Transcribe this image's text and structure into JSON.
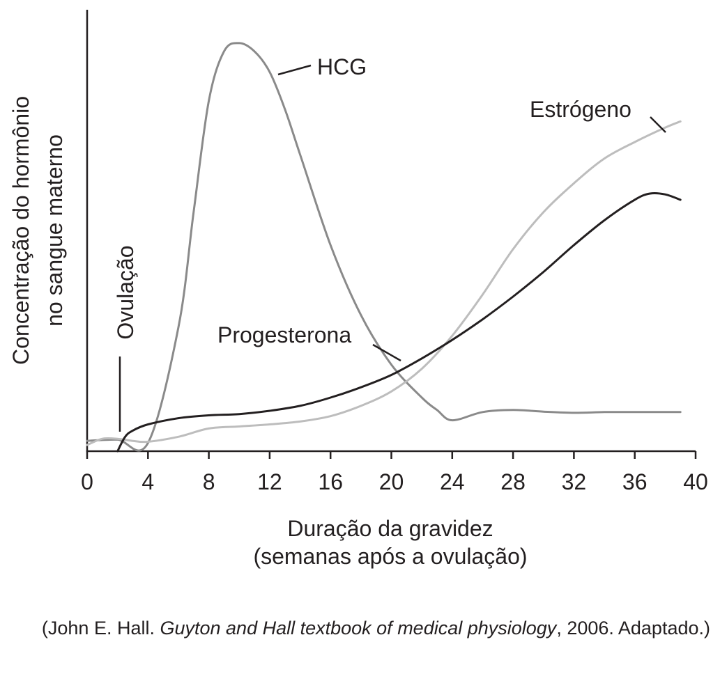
{
  "chart_data": {
    "type": "line",
    "ylabel_lines": [
      "Concentração do hormônio",
      "no sangue materno"
    ],
    "xlabel_lines": [
      "Duração da gravidez",
      "(semanas após a ovulação)"
    ],
    "xlim": [
      0,
      40
    ],
    "x_ticks": [
      0,
      4,
      8,
      12,
      16,
      20,
      24,
      28,
      32,
      36,
      40
    ],
    "ylim": [
      0,
      100
    ],
    "y_unit": "relative concentration (0–100, no scale shown)",
    "grid": false,
    "legend": "none (labels on curves)",
    "annotation": {
      "text": "Ovulação",
      "x": 2
    },
    "series": [
      {
        "name": "HCG",
        "color": "#8a8a8a",
        "points": [
          [
            0,
            2.5
          ],
          [
            2,
            2.8
          ],
          [
            4,
            2
          ],
          [
            6,
            30
          ],
          [
            7,
            58
          ],
          [
            8,
            85
          ],
          [
            9,
            97
          ],
          [
            10,
            99
          ],
          [
            11,
            97
          ],
          [
            12,
            92
          ],
          [
            13,
            83
          ],
          [
            14,
            72
          ],
          [
            16,
            50
          ],
          [
            18,
            33
          ],
          [
            20,
            21
          ],
          [
            22,
            13
          ],
          [
            23,
            10
          ],
          [
            24,
            7.5
          ],
          [
            26,
            9.5
          ],
          [
            28,
            10
          ],
          [
            30,
            9.6
          ],
          [
            32,
            9.3
          ],
          [
            34,
            9.5
          ],
          [
            36,
            9.5
          ],
          [
            39,
            9.5
          ]
        ]
      },
      {
        "name": "Estrógeno",
        "color": "#bdbdbd",
        "points": [
          [
            0,
            1.5
          ],
          [
            1,
            3
          ],
          [
            2,
            3
          ],
          [
            3,
            2.5
          ],
          [
            4,
            2.3
          ],
          [
            6,
            3.5
          ],
          [
            8,
            5.5
          ],
          [
            10,
            6
          ],
          [
            12,
            6.5
          ],
          [
            14,
            7.2
          ],
          [
            16,
            8.5
          ],
          [
            18,
            11
          ],
          [
            20,
            14.5
          ],
          [
            22,
            20
          ],
          [
            24,
            28
          ],
          [
            26,
            38
          ],
          [
            28,
            49
          ],
          [
            30,
            58
          ],
          [
            32,
            65
          ],
          [
            34,
            71
          ],
          [
            36,
            75
          ],
          [
            38,
            78.5
          ],
          [
            39,
            80
          ]
        ]
      },
      {
        "name": "Progesterona",
        "color": "#231f20",
        "points": [
          [
            2,
            0
          ],
          [
            2.5,
            3.5
          ],
          [
            3,
            5
          ],
          [
            4,
            6.5
          ],
          [
            6,
            8
          ],
          [
            8,
            8.7
          ],
          [
            10,
            9
          ],
          [
            12,
            9.8
          ],
          [
            14,
            11
          ],
          [
            16,
            13
          ],
          [
            18,
            15.5
          ],
          [
            20,
            18.5
          ],
          [
            22,
            22.5
          ],
          [
            24,
            27
          ],
          [
            26,
            32
          ],
          [
            28,
            37.5
          ],
          [
            30,
            43.5
          ],
          [
            32,
            50
          ],
          [
            34,
            56
          ],
          [
            36,
            61
          ],
          [
            37,
            62.5
          ],
          [
            38,
            62.3
          ],
          [
            39,
            61
          ]
        ]
      }
    ]
  },
  "labels": {
    "hcg": "HCG",
    "estrogeno": "Estrógeno",
    "progesterona": "Progesterona",
    "ovulacao": "Ovulação"
  },
  "caption": {
    "prefix": "(John E. Hall. ",
    "title": "Guyton and Hall textbook of medical physiology",
    "suffix": ", 2006. Adaptado.)"
  }
}
